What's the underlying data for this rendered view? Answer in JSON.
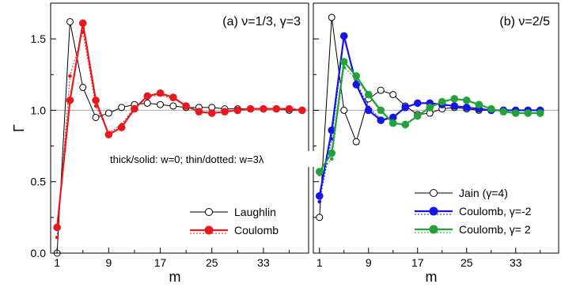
{
  "note": "thick/solid: w=0; thin/dotted: w=3λ",
  "chart_data": [
    {
      "type": "line",
      "title": "(a) ν=1/3, γ=3",
      "xlabel": "m",
      "ylabel": "Γ",
      "xlim": [
        0,
        40
      ],
      "ylim": [
        0,
        1.75
      ],
      "xticks": [
        1,
        9,
        17,
        25,
        33
      ],
      "xtick_labels": [
        "1",
        "9",
        "17",
        "25",
        "33"
      ],
      "yticks": [
        0,
        0.5,
        1.0,
        1.5
      ],
      "ytick_labels": [
        "0.0",
        "0.5",
        "1.0",
        "1.5"
      ],
      "reference_line": 1.0,
      "legend_position": "bottom-right",
      "series": [
        {
          "name": "Laughlin",
          "color": "#000000",
          "marker": "open-circle",
          "x": [
            1,
            3,
            5,
            7,
            9,
            11,
            13,
            15,
            17,
            19,
            21,
            23,
            25,
            27,
            29,
            31,
            33,
            35,
            37,
            39
          ],
          "y": [
            0.0,
            1.62,
            1.16,
            0.95,
            0.98,
            1.02,
            1.04,
            1.05,
            1.04,
            1.03,
            1.02,
            1.02,
            1.02,
            1.01,
            1.01,
            1.01,
            1.01,
            1.01,
            1.0,
            1.0
          ]
        },
        {
          "name": "Coulomb",
          "color": "#e8191c",
          "marker": "filled-circle",
          "x": [
            1,
            3,
            5,
            7,
            9,
            11,
            13,
            15,
            17,
            19,
            21,
            23,
            25,
            27,
            29,
            31,
            33,
            35,
            37,
            39
          ],
          "y": [
            0.18,
            1.07,
            1.61,
            1.07,
            0.83,
            0.88,
            1.01,
            1.1,
            1.12,
            1.09,
            1.03,
            0.99,
            0.98,
            0.99,
            1.0,
            1.01,
            1.01,
            1.01,
            1.01,
            1.0
          ],
          "w3_y": [
            0.11,
            1.24,
            1.55,
            1.03,
            0.84,
            0.9,
            1.02,
            1.09,
            1.11,
            1.08,
            1.03,
            0.99,
            0.98,
            0.99,
            1.0,
            1.01,
            1.01,
            1.01,
            1.01,
            1.0
          ]
        }
      ]
    },
    {
      "type": "line",
      "title": "(b) ν=2/5",
      "xlabel": "m",
      "xlim": [
        0,
        40
      ],
      "ylim": [
        0,
        1.75
      ],
      "xticks": [
        1,
        9,
        17,
        25,
        33
      ],
      "xtick_labels": [
        "1",
        "9",
        "17",
        "25",
        "33"
      ],
      "reference_line": 1.0,
      "legend_position": "bottom-right",
      "series": [
        {
          "name": "Jain (γ=4)",
          "color": "#000000",
          "marker": "open-circle",
          "x": [
            1,
            3,
            5,
            7,
            9,
            11,
            13,
            15,
            17,
            19,
            21,
            23,
            25,
            27,
            29,
            31,
            33,
            35,
            37
          ],
          "y": [
            0.25,
            1.65,
            1.0,
            0.78,
            1.08,
            1.14,
            1.11,
            1.03,
            0.97,
            0.98,
            1.01,
            1.02,
            1.01,
            1.0,
            1.0,
            1.0,
            1.0,
            1.0,
            1.0
          ]
        },
        {
          "name": "Coulomb, γ=-2",
          "color": "#1515e6",
          "marker": "filled-circle",
          "x": [
            1,
            3,
            5,
            7,
            9,
            11,
            13,
            15,
            17,
            19,
            21,
            23,
            25,
            27,
            29,
            31,
            33,
            35,
            37
          ],
          "y": [
            0.4,
            0.86,
            1.52,
            1.18,
            1.0,
            0.93,
            0.95,
            1.02,
            1.05,
            1.05,
            1.04,
            1.03,
            1.02,
            1.01,
            1.0,
            1.0,
            1.0,
            1.0,
            1.0
          ],
          "w3_y": [
            0.36,
            0.8,
            1.5,
            1.2,
            1.02,
            0.94,
            0.95,
            1.02,
            1.05,
            1.05,
            1.04,
            1.03,
            1.02,
            1.01,
            1.0,
            1.0,
            1.0,
            1.0,
            1.0
          ]
        },
        {
          "name": "Coulomb, γ= 2",
          "color": "#21a33a",
          "marker": "filled-circle",
          "x": [
            1,
            3,
            5,
            7,
            9,
            11,
            13,
            15,
            17,
            19,
            21,
            23,
            25,
            27,
            29,
            31,
            33,
            35,
            37
          ],
          "y": [
            0.57,
            0.7,
            1.34,
            1.24,
            1.11,
            1.0,
            0.91,
            0.9,
            0.96,
            1.02,
            1.06,
            1.08,
            1.07,
            1.04,
            1.01,
            0.99,
            0.98,
            0.98,
            0.98
          ],
          "w3_y": [
            0.55,
            0.66,
            1.3,
            1.22,
            1.1,
            0.99,
            0.91,
            0.9,
            0.96,
            1.02,
            1.06,
            1.08,
            1.07,
            1.04,
            1.01,
            0.99,
            0.98,
            0.98,
            0.98
          ]
        }
      ]
    }
  ]
}
